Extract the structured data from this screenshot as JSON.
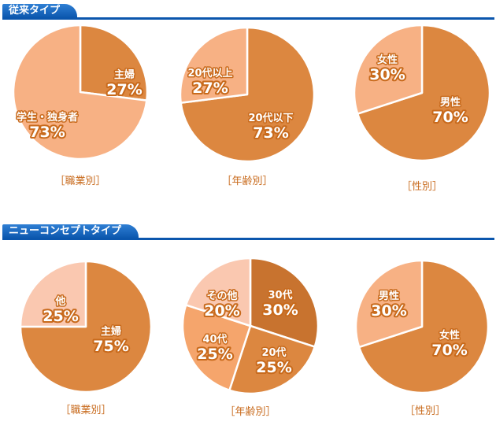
{
  "colors": {
    "header_bg": "#0b56ad",
    "caption": "#c86a1c",
    "slice_dark": "#dc8740",
    "slice_light": "#f7b184",
    "slice_pale": "#fac8b0",
    "slice_brown": "#c8732f",
    "slice_mid": "#f5a56c",
    "label_outline": "#c86a1c"
  },
  "sections": [
    {
      "title": "従来タイプ"
    },
    {
      "title": "ニューコンセプトタイプ"
    }
  ],
  "chart_data": [
    {
      "type": "pie",
      "section": "従来タイプ",
      "caption": "［職業別］",
      "slices": [
        {
          "label": "主婦",
          "value": 27,
          "display": "27%",
          "color": "#dc8740"
        },
        {
          "label": "学生・独身者",
          "value": 73,
          "display": "73%",
          "color": "#f7b184"
        }
      ]
    },
    {
      "type": "pie",
      "section": "従来タイプ",
      "caption": "［年齢別］",
      "slices": [
        {
          "label": "20代以下",
          "value": 73,
          "display": "73%",
          "color": "#dc8740"
        },
        {
          "label": "20代以上",
          "value": 27,
          "display": "27%",
          "color": "#f7b184"
        }
      ]
    },
    {
      "type": "pie",
      "section": "従来タイプ",
      "caption": "［性別］",
      "slices": [
        {
          "label": "男性",
          "value": 70,
          "display": "70%",
          "color": "#dc8740"
        },
        {
          "label": "女性",
          "value": 30,
          "display": "30%",
          "color": "#f7b184"
        }
      ]
    },
    {
      "type": "pie",
      "section": "ニューコンセプトタイプ",
      "caption": "［職業別］",
      "slices": [
        {
          "label": "主婦",
          "value": 75,
          "display": "75%",
          "color": "#dc8740"
        },
        {
          "label": "他",
          "value": 25,
          "display": "25%",
          "color": "#fac8b0"
        }
      ]
    },
    {
      "type": "pie",
      "section": "ニューコンセプトタイプ",
      "caption": "［年齢別］",
      "slices": [
        {
          "label": "30代",
          "value": 30,
          "display": "30%",
          "color": "#c8732f"
        },
        {
          "label": "20代",
          "value": 25,
          "display": "25%",
          "color": "#dc8740"
        },
        {
          "label": "40代",
          "value": 25,
          "display": "25%",
          "color": "#f5a56c"
        },
        {
          "label": "その他",
          "value": 20,
          "display": "20%",
          "color": "#fac8b0"
        }
      ]
    },
    {
      "type": "pie",
      "section": "ニューコンセプトタイプ",
      "caption": "［性別］",
      "slices": [
        {
          "label": "女性",
          "value": 70,
          "display": "70%",
          "color": "#dc8740"
        },
        {
          "label": "男性",
          "value": 30,
          "display": "30%",
          "color": "#f7b184"
        }
      ]
    }
  ]
}
